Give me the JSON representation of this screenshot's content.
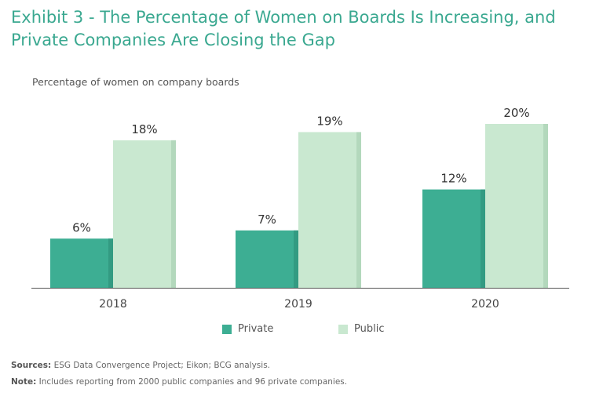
{
  "title_line1": "Exhibit 3 - The Percentage of Women on Boards Is Increasing, and",
  "title_line2": "Private Companies Are Closing the Gap",
  "colors": {
    "private": "#3dae93",
    "public": "#c9e8d0",
    "title": "#3aa890"
  },
  "chart_data": {
    "type": "bar",
    "title": "Exhibit 3 - The Percentage of Women on Boards Is Increasing, and Private Companies Are Closing the Gap",
    "ylabel": "Percentage of women on company boards",
    "categories": [
      "2018",
      "2019",
      "2020"
    ],
    "series": [
      {
        "name": "Private",
        "values": [
          6,
          7,
          12
        ],
        "labels": [
          "6%",
          "7%",
          "12%"
        ]
      },
      {
        "name": "Public",
        "values": [
          18,
          19,
          20
        ],
        "labels": [
          "18%",
          "19%",
          "20%"
        ]
      }
    ],
    "ylim": [
      0,
      22
    ],
    "grid": false,
    "legend": "bottom-center"
  },
  "legend": {
    "private": "Private",
    "public": "Public"
  },
  "footer": {
    "sources_label": "Sources:",
    "sources_text": " ESG Data Convergence Project; Eikon; BCG analysis.",
    "note_label": "Note:",
    "note_text": " Includes reporting from 2000 public companies and 96 private companies."
  }
}
